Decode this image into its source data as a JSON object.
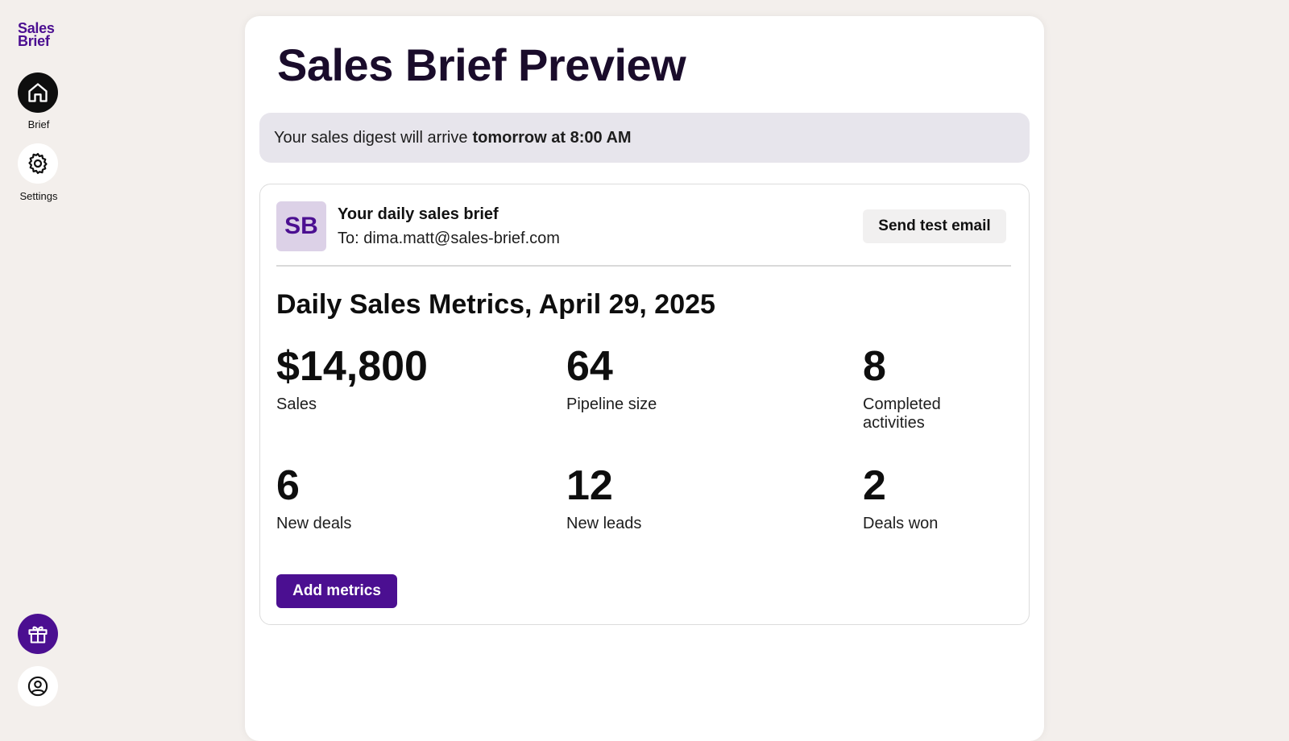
{
  "sidebar": {
    "logo": [
      "Sales",
      "Brief"
    ],
    "items": [
      {
        "label": "Brief",
        "icon": "home-icon",
        "active": true
      },
      {
        "label": "Settings",
        "icon": "gear-icon",
        "active": false
      }
    ],
    "bottom_icons": [
      "gift-icon",
      "user-circle-icon"
    ]
  },
  "page": {
    "title": "Sales Brief Preview"
  },
  "banner": {
    "text": "Your sales digest will arrive",
    "emphasis": "tomorrow at 8:00 AM"
  },
  "email": {
    "avatar_initials": "SB",
    "subject": "Your daily sales brief",
    "to": "To: dima.matt@sales-brief.com",
    "send_test_label": "Send test email",
    "metrics_title": "Daily Sales Metrics, April 29, 2025",
    "metrics": [
      {
        "value": "$14,800",
        "label": "Sales"
      },
      {
        "value": "64",
        "label": "Pipeline size"
      },
      {
        "value": "8",
        "label": "Completed activities"
      },
      {
        "value": "6",
        "label": "New deals"
      },
      {
        "value": "12",
        "label": "New leads"
      },
      {
        "value": "2",
        "label": "Deals won"
      }
    ],
    "add_metrics_label": "Add metrics"
  },
  "colors": {
    "brand": "#4b0f91",
    "background": "#f3efec",
    "banner": "#e7e5ec"
  }
}
